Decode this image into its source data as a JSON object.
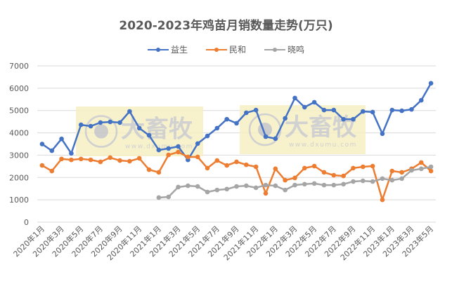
{
  "chart_data": {
    "type": "line",
    "title": "2020-2023年鸡苗月销数量走势(万只)",
    "xlabel": "",
    "ylabel": "",
    "ylim": [
      0,
      7000
    ],
    "yticks": [
      0,
      1000,
      2000,
      3000,
      4000,
      5000,
      6000,
      7000
    ],
    "grid": true,
    "legend_position": "top",
    "categories": [
      "2020年1月",
      "2020年2月",
      "2020年3月",
      "2020年4月",
      "2020年5月",
      "2020年6月",
      "2020年7月",
      "2020年8月",
      "2020年9月",
      "2020年10月",
      "2020年11月",
      "2020年12月",
      "2021年1月",
      "2021年2月",
      "2021年3月",
      "2021年4月",
      "2021年5月",
      "2021年6月",
      "2021年7月",
      "2021年8月",
      "2021年9月",
      "2021年10月",
      "2021年11月",
      "2021年12月",
      "2022年1月",
      "2022年2月",
      "2022年3月",
      "2022年4月",
      "2022年5月",
      "2022年6月",
      "2022年7月",
      "2022年8月",
      "2022年9月",
      "2022年10月",
      "2022年11月",
      "2022年12月",
      "2023年1月",
      "2023年2月",
      "2023年3月",
      "2023年4月",
      "2023年5月"
    ],
    "xtick_labels": [
      "2020年1月",
      "2020年3月",
      "2020年5月",
      "2020年7月",
      "2020年9月",
      "2020年11月",
      "2021年1月",
      "2021年3月",
      "2021年5月",
      "2021年7月",
      "2021年9月",
      "2021年11月",
      "2022年1月",
      "2022年3月",
      "2022年5月",
      "2022年7月",
      "2022年9月",
      "2022年11月",
      "2023年1月",
      "2023年3月",
      "2023年5月"
    ],
    "series": [
      {
        "name": "益生",
        "color": "#4472C4",
        "values": [
          3500,
          3200,
          3730,
          3080,
          4360,
          4300,
          4460,
          4490,
          4460,
          4960,
          4210,
          3890,
          3230,
          3300,
          3390,
          2790,
          3520,
          3860,
          4210,
          4610,
          4430,
          4900,
          5020,
          3830,
          3740,
          4650,
          5560,
          5150,
          5370,
          5020,
          5020,
          4610,
          4610,
          4960,
          4930,
          3960,
          5020,
          4990,
          5050,
          5460,
          6220
        ]
      },
      {
        "name": "民和",
        "color": "#ED7D31",
        "values": [
          2540,
          2290,
          2830,
          2790,
          2830,
          2790,
          2700,
          2890,
          2760,
          2730,
          2860,
          2350,
          2230,
          3010,
          3140,
          2920,
          2920,
          2420,
          2760,
          2540,
          2700,
          2570,
          2480,
          1290,
          2390,
          1880,
          1980,
          2420,
          2510,
          2230,
          2100,
          2070,
          2420,
          2480,
          2510,
          1000,
          2290,
          2230,
          2390,
          2670,
          2290
        ]
      },
      {
        "name": "晓鸣",
        "color": "#A5A5A5",
        "values": [
          null,
          null,
          null,
          null,
          null,
          null,
          null,
          null,
          null,
          null,
          null,
          null,
          1100,
          1130,
          1570,
          1630,
          1600,
          1350,
          1440,
          1480,
          1600,
          1630,
          1540,
          1660,
          1630,
          1440,
          1660,
          1700,
          1730,
          1660,
          1660,
          1700,
          1820,
          1850,
          1820,
          1950,
          1880,
          1950,
          2320,
          2390,
          2480
        ]
      }
    ],
    "annotations": [
      "大畜牧 www.dxumu.com (watermark)",
      "大畜牧 www.dxumu.com (watermark)"
    ]
  },
  "watermark": {
    "brand": "大畜牧",
    "url": "www.dxumu.com"
  },
  "colors": {
    "grid": "#D9D9D9",
    "text": "#595959",
    "watermark_bg": "#F6F0C4"
  }
}
